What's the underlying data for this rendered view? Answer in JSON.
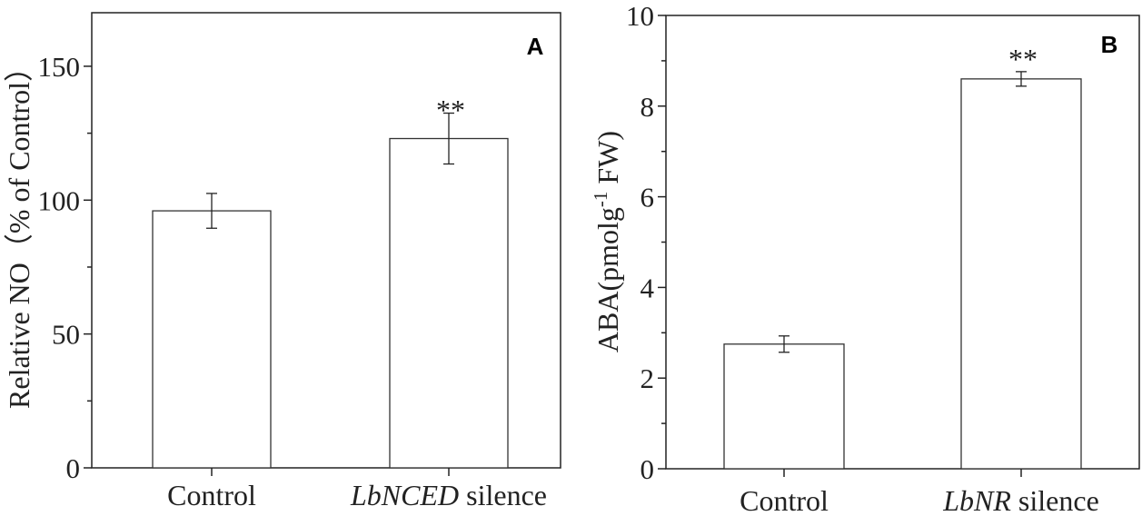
{
  "chart_data": [
    {
      "type": "bar",
      "panel_label": "A",
      "categories": [
        {
          "prefix": "",
          "italic": "",
          "suffix": "Control"
        },
        {
          "prefix": "",
          "italic": "LbNCED",
          "suffix": " silence"
        }
      ],
      "values": [
        96,
        123
      ],
      "errors": [
        6.5,
        9.5
      ],
      "annotations": [
        "",
        "**"
      ],
      "ylabel": "Relative NO（% of Control）",
      "ylim": [
        0,
        170
      ],
      "yticks": [
        0,
        50,
        100,
        150
      ],
      "minor_step": 25,
      "grid": false
    },
    {
      "type": "bar",
      "panel_label": "B",
      "categories": [
        {
          "prefix": "",
          "italic": "",
          "suffix": "Control"
        },
        {
          "prefix": "",
          "italic": "LbNR",
          "suffix": " silence"
        }
      ],
      "values": [
        2.75,
        8.6
      ],
      "errors": [
        0.18,
        0.16
      ],
      "annotations": [
        "",
        "**"
      ],
      "ylabel": "ABA(pmolg-1 FW)",
      "ylabel_parts": {
        "main": "ABA(pmolg",
        "sup": "-1",
        "tail": " FW)"
      },
      "ylim": [
        0,
        10
      ],
      "yticks": [
        0,
        2,
        4,
        6,
        8,
        10
      ],
      "minor_step": 1,
      "grid": false
    }
  ]
}
